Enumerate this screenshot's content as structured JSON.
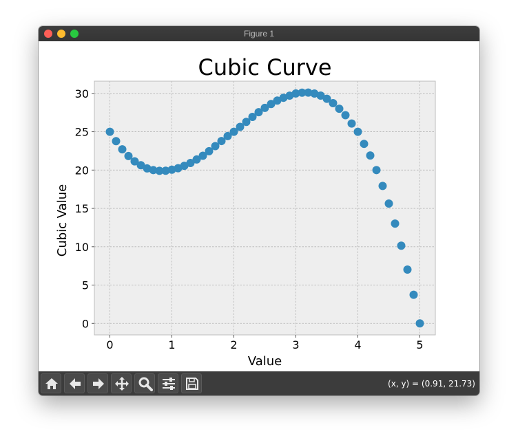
{
  "window": {
    "title": "Figure 1"
  },
  "toolbar": {
    "buttons": [
      {
        "name": "home-button",
        "icon": "home-icon"
      },
      {
        "name": "back-button",
        "icon": "arrow-left-icon"
      },
      {
        "name": "forward-button",
        "icon": "arrow-right-icon"
      },
      {
        "name": "pan-button",
        "icon": "move-icon"
      },
      {
        "name": "zoom-button",
        "icon": "magnifier-icon"
      },
      {
        "name": "configure-subplots-button",
        "icon": "sliders-icon"
      },
      {
        "name": "save-button",
        "icon": "floppy-disk-icon"
      }
    ],
    "coords": "(x, y) = (0.91, 21.73)"
  },
  "chart_data": {
    "type": "scatter",
    "title": "Cubic Curve",
    "xlabel": "Value",
    "ylabel": "Cubic Value",
    "xlim": [
      -0.25,
      5.25
    ],
    "ylim": [
      -1.5,
      31.6
    ],
    "xticks": [
      0,
      1,
      2,
      3,
      4,
      5
    ],
    "yticks": [
      0,
      5,
      10,
      15,
      20,
      25,
      30
    ],
    "grid": true,
    "marker_color": "#348abd",
    "background": "#eeeeee",
    "x": [
      0.0,
      0.1,
      0.2,
      0.3,
      0.4,
      0.5,
      0.6,
      0.7,
      0.8,
      0.9,
      1.0,
      1.1,
      1.2,
      1.3,
      1.4,
      1.5,
      1.6,
      1.7,
      1.8,
      1.9,
      2.0,
      2.1,
      2.2,
      2.3,
      2.4,
      2.5,
      2.6,
      2.7,
      2.8,
      2.9,
      3.0,
      3.1,
      3.2,
      3.3,
      3.4,
      3.5,
      3.6,
      3.7,
      3.8,
      3.9,
      4.0,
      4.1,
      4.2,
      4.3,
      4.4,
      4.5,
      4.6,
      4.7,
      4.8,
      4.9,
      5.0
    ],
    "y": [
      25.0,
      23.77,
      22.71,
      21.83,
      21.14,
      20.63,
      20.22,
      20.0,
      19.9,
      19.92,
      20.05,
      20.24,
      20.55,
      20.93,
      21.38,
      21.87,
      22.46,
      23.12,
      23.79,
      24.43,
      25.0,
      25.63,
      26.29,
      26.94,
      27.55,
      28.11,
      28.62,
      29.07,
      29.43,
      29.71,
      30.0,
      30.1,
      30.11,
      29.98,
      29.72,
      29.3,
      28.73,
      28.0,
      27.16,
      26.07,
      25.0,
      23.42,
      21.9,
      20.0,
      17.93,
      15.63,
      13.02,
      10.14,
      7.02,
      3.74,
      0.0
    ]
  }
}
